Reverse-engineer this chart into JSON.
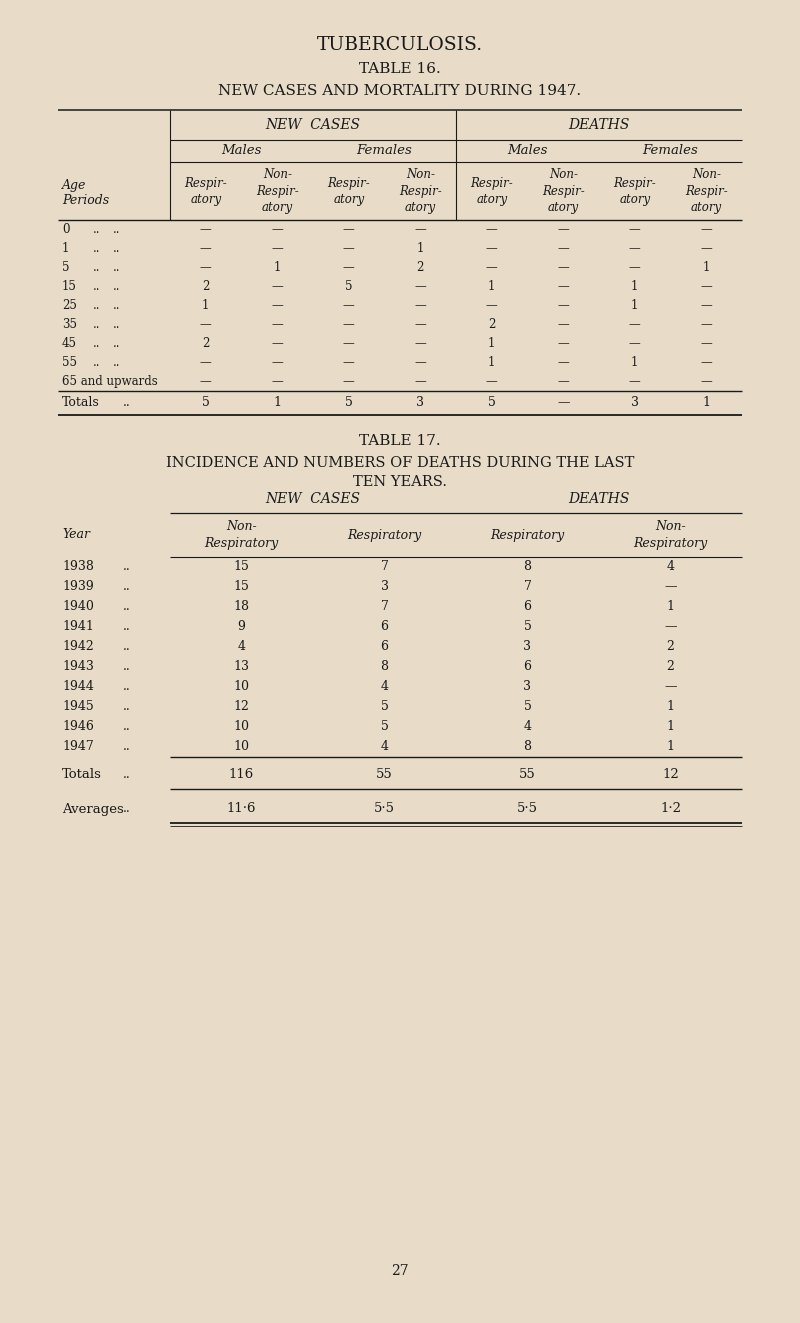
{
  "bg_color": "#e8dcc8",
  "text_color": "#1a1a1a",
  "title": "TUBERCULOSIS.",
  "t16_title": "TABLE 16.",
  "t16_subtitle": "NEW CASES AND MORTALITY DURING 1947.",
  "t17_title": "TABLE 17.",
  "t17_sub1": "INCIDENCE AND NUMBERS OF DEATHS DURING THE LAST",
  "t17_sub2": "TEN YEARS.",
  "t16_data": [
    [
      "—",
      "—",
      "—",
      "—",
      "—",
      "—",
      "—",
      "—"
    ],
    [
      "—",
      "—",
      "—",
      "1",
      "—",
      "—",
      "—",
      "—"
    ],
    [
      "—",
      "1",
      "—",
      "2",
      "—",
      "—",
      "—",
      "1"
    ],
    [
      "2",
      "—",
      "5",
      "—",
      "1",
      "—",
      "1",
      "—"
    ],
    [
      "1",
      "—",
      "—",
      "—",
      "—",
      "—",
      "1",
      "—"
    ],
    [
      "—",
      "—",
      "—",
      "—",
      "2",
      "—",
      "—",
      "—"
    ],
    [
      "2",
      "—",
      "—",
      "—",
      "1",
      "—",
      "—",
      "—"
    ],
    [
      "—",
      "—",
      "—",
      "—",
      "1",
      "—",
      "1",
      "—"
    ],
    [
      "—",
      "—",
      "—",
      "—",
      "—",
      "—",
      "—",
      "—"
    ],
    [
      "5",
      "1",
      "5",
      "3",
      "5",
      "—",
      "3",
      "1"
    ]
  ],
  "t16_age_labels": [
    "0",
    "1",
    "5",
    "15",
    "25",
    "35",
    "45",
    "55",
    "65 and upwards",
    "Totals"
  ],
  "t17_data": [
    [
      "15",
      "7",
      "8",
      "4"
    ],
    [
      "15",
      "3",
      "7",
      "—"
    ],
    [
      "18",
      "7",
      "6",
      "1"
    ],
    [
      "9",
      "6",
      "5",
      "—"
    ],
    [
      "4",
      "6",
      "3",
      "2"
    ],
    [
      "13",
      "8",
      "6",
      "2"
    ],
    [
      "10",
      "4",
      "3",
      "—"
    ],
    [
      "12",
      "5",
      "5",
      "1"
    ],
    [
      "10",
      "5",
      "4",
      "1"
    ],
    [
      "10",
      "4",
      "8",
      "1"
    ]
  ],
  "t17_years": [
    "1938",
    "1939",
    "1940",
    "1941",
    "1942",
    "1943",
    "1944",
    "1945",
    "1946",
    "1947"
  ],
  "t17_totals": [
    "116",
    "55",
    "55",
    "12"
  ],
  "t17_averages": [
    "11·6",
    "5·5",
    "5·5",
    "1·2"
  ],
  "page_number": "27"
}
